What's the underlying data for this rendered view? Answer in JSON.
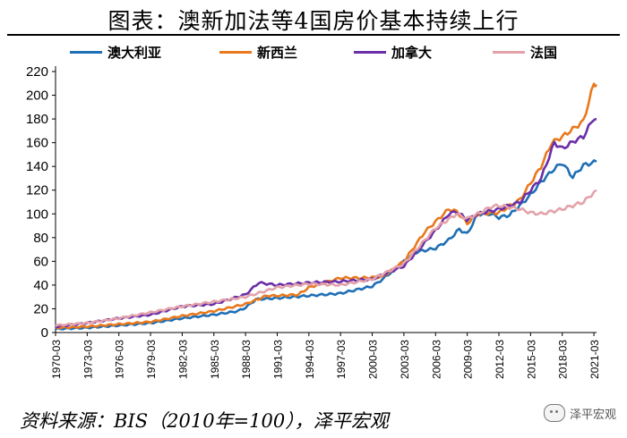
{
  "title": "图表：澳新加法等4国房价基本持续上行",
  "source": "资料来源：BIS（2010年=100），泽平宏观",
  "watermark": {
    "text": "泽平宏观",
    "icon": "wechat-icon"
  },
  "chart_data": {
    "type": "line",
    "xlabel": "",
    "ylabel": "",
    "ylim": [
      0,
      220
    ],
    "yticks": [
      0,
      20,
      40,
      60,
      80,
      100,
      120,
      140,
      160,
      180,
      200,
      220
    ],
    "xticks": [
      "1970-03",
      "1973-03",
      "1976-03",
      "1979-03",
      "1982-03",
      "1985-03",
      "1988-03",
      "1991-03",
      "1994-03",
      "1997-03",
      "2000-03",
      "2003-03",
      "2006-03",
      "2009-03",
      "2012-03",
      "2015-03",
      "2018-03",
      "2021-03"
    ],
    "x_range": [
      "1970-03",
      "2021-06"
    ],
    "grid": false,
    "legend_position": "top",
    "series": [
      {
        "name": "澳大利亚",
        "color": "#1f6fb5",
        "points": [
          [
            "1970-03",
            3
          ],
          [
            "1973-03",
            4
          ],
          [
            "1976-03",
            6
          ],
          [
            "1979-03",
            8
          ],
          [
            "1982-03",
            12
          ],
          [
            "1985-03",
            15
          ],
          [
            "1987-06",
            18
          ],
          [
            "1988-03",
            21
          ],
          [
            "1989-03",
            28
          ],
          [
            "1991-03",
            29
          ],
          [
            "1994-03",
            31
          ],
          [
            "1997-03",
            33
          ],
          [
            "2000-03",
            39
          ],
          [
            "2001-03",
            45
          ],
          [
            "2003-03",
            60
          ],
          [
            "2004-06",
            68
          ],
          [
            "2006-03",
            71
          ],
          [
            "2007-06",
            78
          ],
          [
            "2008-06",
            87
          ],
          [
            "2009-03",
            83
          ],
          [
            "2010-03",
            100
          ],
          [
            "2011-06",
            100
          ],
          [
            "2012-03",
            97
          ],
          [
            "2013-03",
            99
          ],
          [
            "2014-03",
            107
          ],
          [
            "2015-03",
            116
          ],
          [
            "2016-03",
            127
          ],
          [
            "2017-06",
            138
          ],
          [
            "2018-03",
            143
          ],
          [
            "2019-03",
            131
          ],
          [
            "2020-03",
            141
          ],
          [
            "2021-06",
            144
          ]
        ]
      },
      {
        "name": "新西兰",
        "color": "#e8791e",
        "points": [
          [
            "1970-03",
            4
          ],
          [
            "1973-03",
            5
          ],
          [
            "1976-03",
            7
          ],
          [
            "1979-03",
            9
          ],
          [
            "1982-03",
            14
          ],
          [
            "1985-03",
            18
          ],
          [
            "1988-03",
            24
          ],
          [
            "1990-03",
            31
          ],
          [
            "1991-03",
            31
          ],
          [
            "1993-03",
            32
          ],
          [
            "1994-03",
            38
          ],
          [
            "1997-03",
            46
          ],
          [
            "1999-03",
            46
          ],
          [
            "2001-03",
            47
          ],
          [
            "2003-03",
            60
          ],
          [
            "2005-03",
            85
          ],
          [
            "2007-06",
            104
          ],
          [
            "2008-03",
            102
          ],
          [
            "2009-03",
            92
          ],
          [
            "2010-03",
            100
          ],
          [
            "2012-03",
            101
          ],
          [
            "2014-03",
            112
          ],
          [
            "2016-03",
            140
          ],
          [
            "2017-03",
            160
          ],
          [
            "2018-03",
            165
          ],
          [
            "2020-03",
            178
          ],
          [
            "2021-03",
            210
          ],
          [
            "2021-06",
            209
          ]
        ]
      },
      {
        "name": "加拿大",
        "color": "#6a2fa8",
        "points": [
          [
            "1970-03",
            5
          ],
          [
            "1973-03",
            8
          ],
          [
            "1976-03",
            12
          ],
          [
            "1979-03",
            15
          ],
          [
            "1982-03",
            22
          ],
          [
            "1985-03",
            24
          ],
          [
            "1988-03",
            32
          ],
          [
            "1989-06",
            42
          ],
          [
            "1991-03",
            40
          ],
          [
            "1994-03",
            42
          ],
          [
            "1997-03",
            43
          ],
          [
            "2000-03",
            45
          ],
          [
            "2003-03",
            56
          ],
          [
            "2006-03",
            86
          ],
          [
            "2007-06",
            100
          ],
          [
            "2008-03",
            102
          ],
          [
            "2009-03",
            95
          ],
          [
            "2010-03",
            100
          ],
          [
            "2012-03",
            104
          ],
          [
            "2014-03",
            110
          ],
          [
            "2016-03",
            130
          ],
          [
            "2017-06",
            160
          ],
          [
            "2018-03",
            155
          ],
          [
            "2019-06",
            162
          ],
          [
            "2020-03",
            165
          ],
          [
            "2021-03",
            181
          ],
          [
            "2021-06",
            180
          ]
        ]
      },
      {
        "name": "法国",
        "color": "#e3a2aa",
        "points": [
          [
            "1970-03",
            6
          ],
          [
            "1973-03",
            8
          ],
          [
            "1976-03",
            12
          ],
          [
            "1979-03",
            17
          ],
          [
            "1982-03",
            22
          ],
          [
            "1985-03",
            26
          ],
          [
            "1988-03",
            30
          ],
          [
            "1991-03",
            38
          ],
          [
            "1994-03",
            41
          ],
          [
            "1997-03",
            40
          ],
          [
            "2000-03",
            45
          ],
          [
            "2003-03",
            58
          ],
          [
            "2006-03",
            88
          ],
          [
            "2008-03",
            100
          ],
          [
            "2009-03",
            96
          ],
          [
            "2010-03",
            100
          ],
          [
            "2011-06",
            106
          ],
          [
            "2012-03",
            107
          ],
          [
            "2014-03",
            104
          ],
          [
            "2015-03",
            101
          ],
          [
            "2016-03",
            100
          ],
          [
            "2018-03",
            104
          ],
          [
            "2020-03",
            110
          ],
          [
            "2021-06",
            120
          ]
        ]
      }
    ]
  }
}
